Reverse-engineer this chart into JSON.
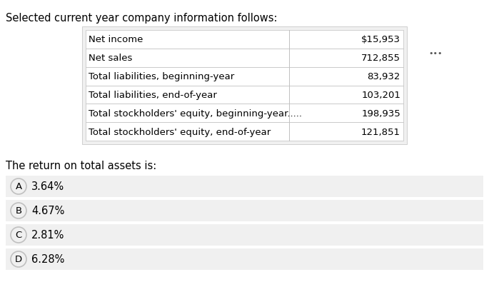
{
  "title": "Selected current year company information follows:",
  "table_rows": [
    [
      "Net income",
      "$15,953"
    ],
    [
      "Net sales",
      "712,855"
    ],
    [
      "Total liabilities, beginning-year",
      "83,932"
    ],
    [
      "Total liabilities, end-of-year",
      "103,201"
    ],
    [
      "Total stockholders' equity, beginning-year.....",
      "198,935"
    ],
    [
      "Total stockholders' equity, end-of-year",
      "121,851"
    ]
  ],
  "question": "The return on total assets is:",
  "options": [
    {
      "label": "A",
      "text": "3.64%"
    },
    {
      "label": "B",
      "text": "4.67%"
    },
    {
      "label": "C",
      "text": "2.81%"
    },
    {
      "label": "D",
      "text": "6.28%"
    }
  ],
  "bg_color": "#ffffff",
  "table_bg": "#f5f5f5",
  "option_bg": "#f0f0f0",
  "option_hover": "#e8e8e8",
  "border_color": "#c0c0c0",
  "text_color": "#000000",
  "dots_color": "#555555",
  "title_fontsize": 10.5,
  "table_fontsize": 9.5,
  "question_fontsize": 10.5,
  "option_fontsize": 10.5,
  "circle_fontsize": 9.5
}
